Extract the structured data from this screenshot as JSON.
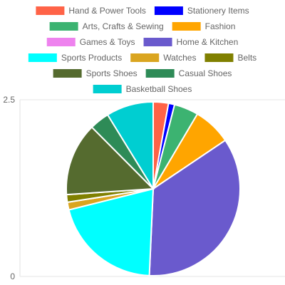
{
  "chart_data": {
    "type": "pie",
    "legend_position": "top",
    "y_axis_ticks": [
      "2.5",
      "0"
    ],
    "series": [
      {
        "name": "Hand & Power Tools",
        "value": 1,
        "color": "#ff6347"
      },
      {
        "name": "Stationery Items",
        "value": 0.4,
        "color": "#0000ff"
      },
      {
        "name": "Arts, Crafts & Sewing",
        "value": 1.6,
        "color": "#3cb371"
      },
      {
        "name": "Fashion",
        "value": 2.5,
        "color": "#ffa500"
      },
      {
        "name": "Games & Toys",
        "value": 0,
        "color": "#ee82ee"
      },
      {
        "name": "Home & Kitchen",
        "value": 12.4,
        "color": "#6a5acd"
      },
      {
        "name": "Sports Products",
        "value": 7.2,
        "color": "#00ffff"
      },
      {
        "name": "Watches",
        "value": 0.5,
        "color": "#daa520"
      },
      {
        "name": "Belts",
        "value": 0.5,
        "color": "#808000"
      },
      {
        "name": "Sports Shoes",
        "value": 4.8,
        "color": "#556b2f"
      },
      {
        "name": "Casual Shoes",
        "value": 1.3,
        "color": "#2e8b57"
      },
      {
        "name": "Basketball Shoes",
        "value": 3.1,
        "color": "#00ced1"
      }
    ]
  }
}
